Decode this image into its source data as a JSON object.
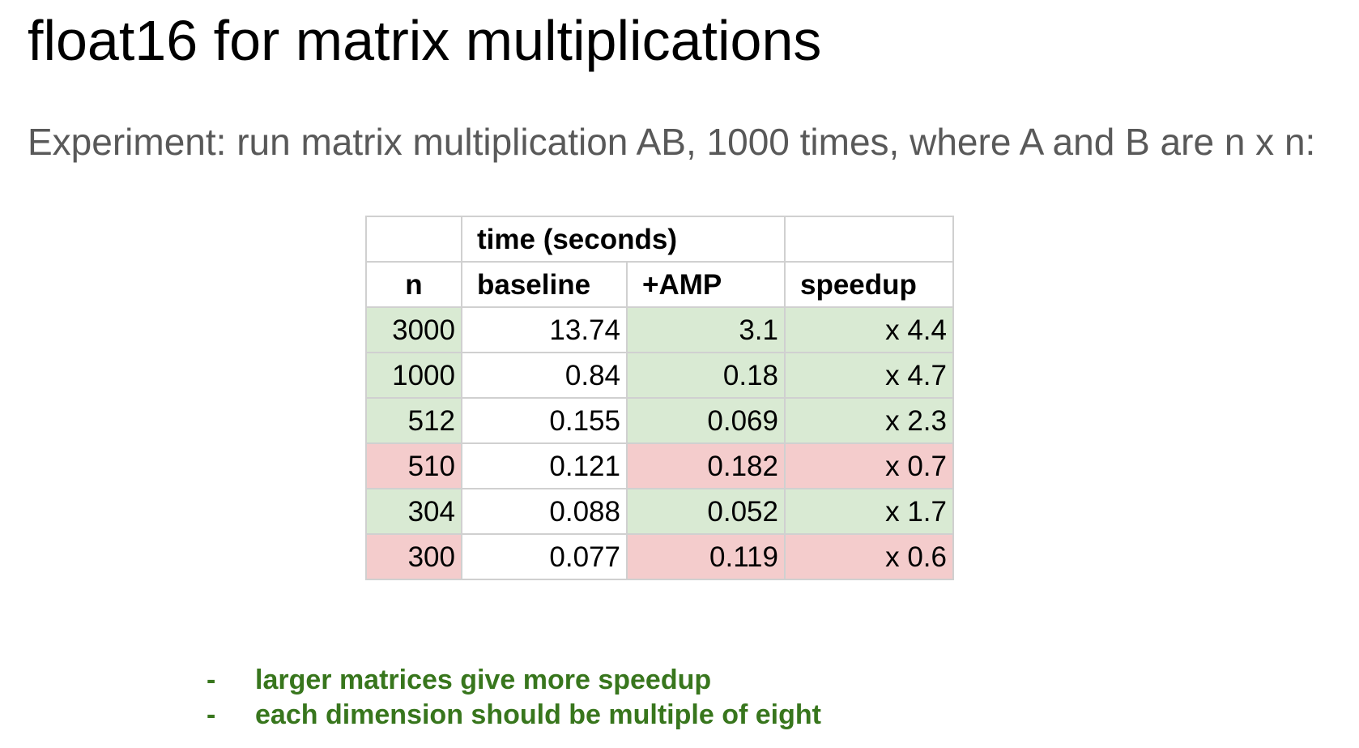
{
  "title": "float16 for matrix multiplications",
  "subtitle": "Experiment: run matrix multiplication AB, 1000 times, where A and B are n x n:",
  "table": {
    "group_header": "time (seconds)",
    "headers": {
      "n": "n",
      "baseline": "baseline",
      "amp": "+AMP",
      "speedup": "speedup"
    },
    "rows": [
      {
        "n": "3000",
        "baseline": "13.74",
        "amp": "3.1",
        "speedup": "x 4.4",
        "status": "faster"
      },
      {
        "n": "1000",
        "baseline": "0.84",
        "amp": "0.18",
        "speedup": "x 4.7",
        "status": "faster"
      },
      {
        "n": "512",
        "baseline": "0.155",
        "amp": "0.069",
        "speedup": "x 2.3",
        "status": "faster"
      },
      {
        "n": "510",
        "baseline": "0.121",
        "amp": "0.182",
        "speedup": "x 0.7",
        "status": "slower"
      },
      {
        "n": "304",
        "baseline": "0.088",
        "amp": "0.052",
        "speedup": "x 1.7",
        "status": "faster"
      },
      {
        "n": "300",
        "baseline": "0.077",
        "amp": "0.119",
        "speedup": "x 0.6",
        "status": "slower"
      }
    ]
  },
  "colors": {
    "faster": "#d9ead3",
    "slower": "#f4cccc",
    "notes": "#38761d"
  },
  "notes": {
    "bullet": "-",
    "items": [
      "larger matrices give more speedup",
      "each dimension should be multiple of eight"
    ]
  }
}
